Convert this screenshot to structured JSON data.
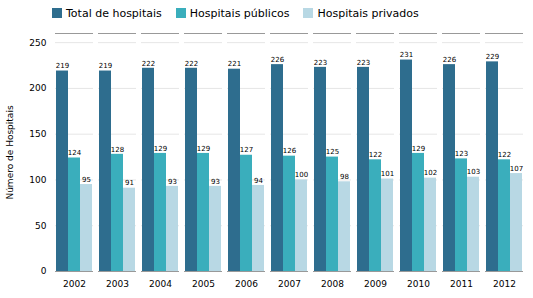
{
  "chart_data": {
    "type": "bar",
    "categories": [
      "2002",
      "2003",
      "2004",
      "2005",
      "2006",
      "2007",
      "2008",
      "2009",
      "2010",
      "2011",
      "2012"
    ],
    "series": [
      {
        "name": "Total de hospitais",
        "color": "#2e6d8e",
        "values": [
          219,
          219,
          222,
          222,
          221,
          226,
          223,
          223,
          231,
          226,
          229
        ]
      },
      {
        "name": "Hospitais públicos",
        "color": "#3aaebc",
        "values": [
          124,
          128,
          129,
          129,
          127,
          126,
          125,
          122,
          129,
          123,
          122
        ]
      },
      {
        "name": "Hospitais privados",
        "color": "#b8d8e4",
        "values": [
          95,
          91,
          93,
          93,
          94,
          100,
          98,
          101,
          102,
          103,
          107
        ]
      }
    ],
    "ylabel": "Número de Hospitais",
    "ylim": [
      0,
      260
    ],
    "yticks": [
      0,
      50,
      100,
      150,
      200,
      250
    ],
    "grid": true,
    "legend": "upper left",
    "data_labels": true
  }
}
